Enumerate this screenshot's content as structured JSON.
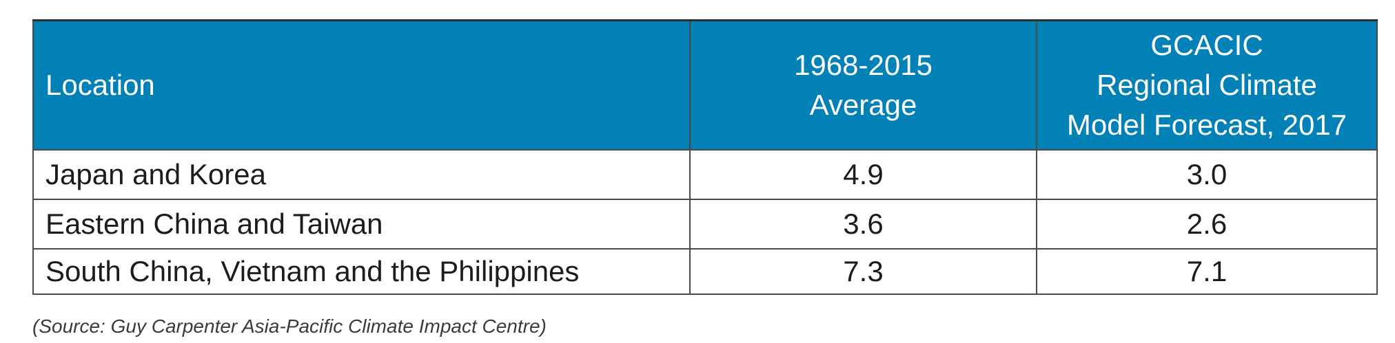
{
  "table": {
    "headers": {
      "location": "Location",
      "average_line1": "1968-2015",
      "average_line2": "Average",
      "forecast_line1": "GCACIC",
      "forecast_line2": "Regional Climate",
      "forecast_line3": "Model Forecast, 2017"
    },
    "rows": [
      {
        "location": "Japan and Korea",
        "average": "4.9",
        "forecast": "3.0"
      },
      {
        "location": "Eastern China and Taiwan",
        "average": "3.6",
        "forecast": "2.6"
      },
      {
        "location": "South China, Vietnam and the Philippines",
        "average": "7.3",
        "forecast": "7.1"
      }
    ]
  },
  "source_note": "(Source: Guy Carpenter Asia-Pacific Climate Impact Centre)",
  "colors": {
    "header_background": "#0181b5",
    "header_text": "#ffffff",
    "border": "#4a4a4a"
  }
}
